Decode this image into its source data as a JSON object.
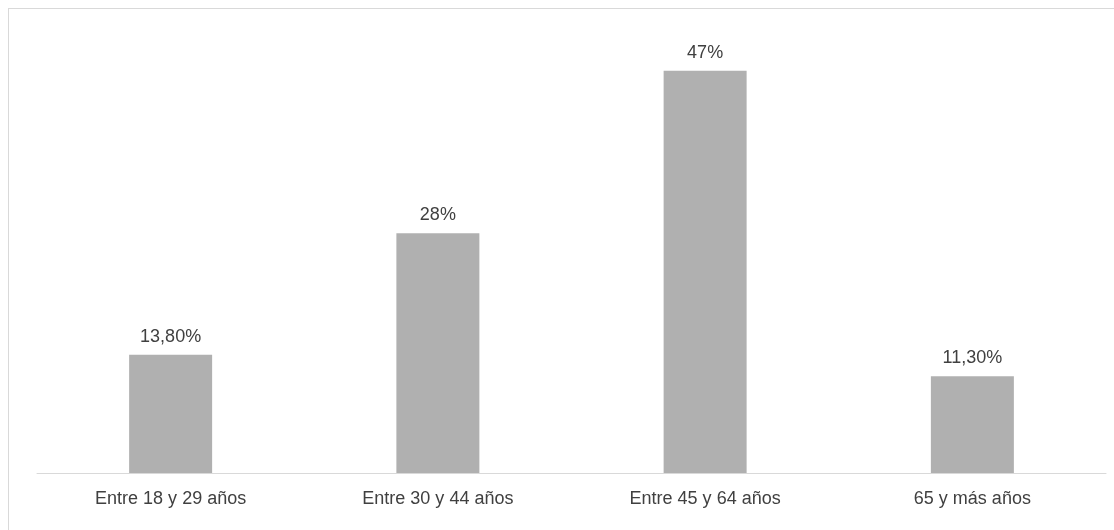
{
  "chart_data": {
    "type": "bar",
    "categories": [
      "Entre 18 y 29 años",
      "Entre 30 y 44 años",
      "Entre 45 y 64 años",
      "65 y más años"
    ],
    "values": [
      13.8,
      28,
      47,
      11.3
    ],
    "value_labels": [
      "13,80%",
      "28%",
      "47%",
      "11,30%"
    ],
    "color": "#b0b0b0"
  }
}
